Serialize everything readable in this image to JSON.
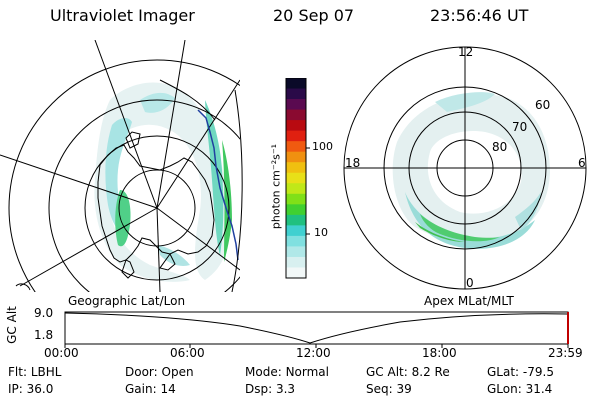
{
  "header": {
    "instrument": "Ultraviolet Imager",
    "date": "20 Sep 07",
    "time": "23:56:46 UT"
  },
  "left_map": {
    "label": "Geographic Lat/Lon"
  },
  "right_map": {
    "label": "Apex MLat/MLT",
    "mlt_labels": [
      "12",
      "18",
      "6",
      "0"
    ],
    "lat_labels": [
      "60",
      "70",
      "80"
    ]
  },
  "colorbar": {
    "unit_label": "photon cm⁻²s⁻¹",
    "tick_labels": [
      "100",
      "10"
    ],
    "colors": [
      "#0a0a28",
      "#2a0a48",
      "#5a0a50",
      "#8a0a30",
      "#b80a10",
      "#e02010",
      "#f05a10",
      "#f09010",
      "#f0c010",
      "#e8e018",
      "#c0e818",
      "#80e018",
      "#40d030",
      "#20c080",
      "#40d0d0",
      "#80e0e0",
      "#b0e8e8",
      "#d8f0f0",
      "#f2f8f8"
    ]
  },
  "timeline": {
    "ylabel": "GC Alt",
    "yticks": [
      "9.0",
      "1.8"
    ],
    "xticks": [
      "00:00",
      "06:00",
      "12:00",
      "18:00",
      "23:59"
    ]
  },
  "info": {
    "rows": [
      [
        {
          "label": "Flt:",
          "value": "LBHL"
        },
        {
          "label": "Door:",
          "value": "Open"
        },
        {
          "label": "Mode:",
          "value": "Normal"
        },
        {
          "label": "GC Alt:",
          "value": "8.2 Re"
        },
        {
          "label": "GLat:",
          "value": "-79.5"
        }
      ],
      [
        {
          "label": "IP:",
          "value": "36.0"
        },
        {
          "label": "Gain:",
          "value": "14"
        },
        {
          "label": "Dsp:",
          "value": "3.3"
        },
        {
          "label": "Seq:",
          "value": "39"
        },
        {
          "label": "GLon:",
          "value": "31.4"
        }
      ]
    ]
  }
}
